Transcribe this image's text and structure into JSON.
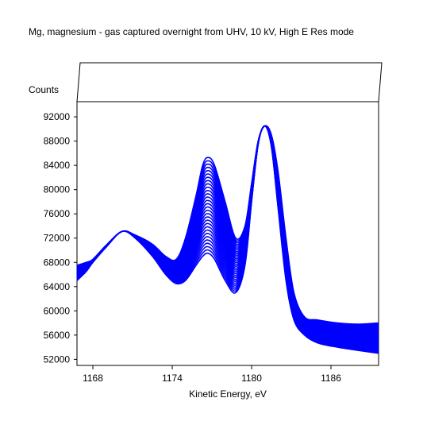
{
  "chart_data": {
    "type": "line",
    "title": "Mg, magnesium - gas captured overnight from UHV, 10 kV, High E Res mode",
    "xlabel": "Kinetic Energy, eV",
    "ylabel": "Counts",
    "xlim": [
      1166.8,
      1189.6
    ],
    "ylim": [
      51000,
      94500
    ],
    "x_ticks": [
      1168,
      1174,
      1180,
      1186
    ],
    "x_tick_labels": [
      "1168",
      "1174",
      "1180",
      "1186"
    ],
    "y_ticks": [
      52000,
      56000,
      60000,
      64000,
      68000,
      72000,
      76000,
      80000,
      84000,
      88000,
      92000
    ],
    "y_tick_labels": [
      "52000",
      "56000",
      "60000",
      "64000",
      "68000",
      "72000",
      "76000",
      "80000",
      "84000",
      "88000",
      "92000"
    ],
    "grid": false,
    "series_color": "#0000ff",
    "series_count": 30,
    "peaks": [
      {
        "x": 1170.2,
        "y": 73100
      },
      {
        "x": 1176.7,
        "y": 85300
      },
      {
        "x": 1181.0,
        "y": 90500
      }
    ],
    "first_series": {
      "x": [
        1166.8,
        1167.5,
        1168.0,
        1169.0,
        1170.2,
        1171.2,
        1172.5,
        1173.5,
        1174.3,
        1175.0,
        1175.8,
        1176.3,
        1176.7,
        1177.2,
        1178.0,
        1178.8,
        1179.5,
        1180.0,
        1180.5,
        1181.0,
        1181.5,
        1182.0,
        1182.6,
        1183.2,
        1184.0,
        1185.0,
        1186.5,
        1188.0,
        1189.6
      ],
      "y": [
        65000,
        66500,
        68000,
        70500,
        73100,
        72000,
        69000,
        66000,
        64500,
        65000,
        67500,
        69000,
        69500,
        68500,
        65000,
        63000,
        67500,
        78000,
        87500,
        90500,
        87000,
        77000,
        65000,
        58500,
        56000,
        54700,
        54000,
        53500,
        53000
      ]
    },
    "last_series": {
      "x": [
        1166.8,
        1167.5,
        1168.0,
        1169.0,
        1170.2,
        1171.2,
        1172.5,
        1173.5,
        1174.3,
        1175.0,
        1175.8,
        1176.3,
        1176.7,
        1177.2,
        1178.0,
        1178.8,
        1179.5,
        1180.0,
        1180.5,
        1181.0,
        1181.5,
        1182.0,
        1182.6,
        1183.2,
        1184.0,
        1185.0,
        1186.5,
        1188.0,
        1189.6
      ],
      "y": [
        67500,
        68000,
        68500,
        70800,
        73100,
        72500,
        71000,
        69000,
        68500,
        72000,
        79000,
        84000,
        85300,
        84000,
        78000,
        72000,
        74000,
        81000,
        88000,
        90500,
        89000,
        83000,
        72000,
        63000,
        59000,
        58500,
        58000,
        57800,
        58000
      ]
    }
  }
}
